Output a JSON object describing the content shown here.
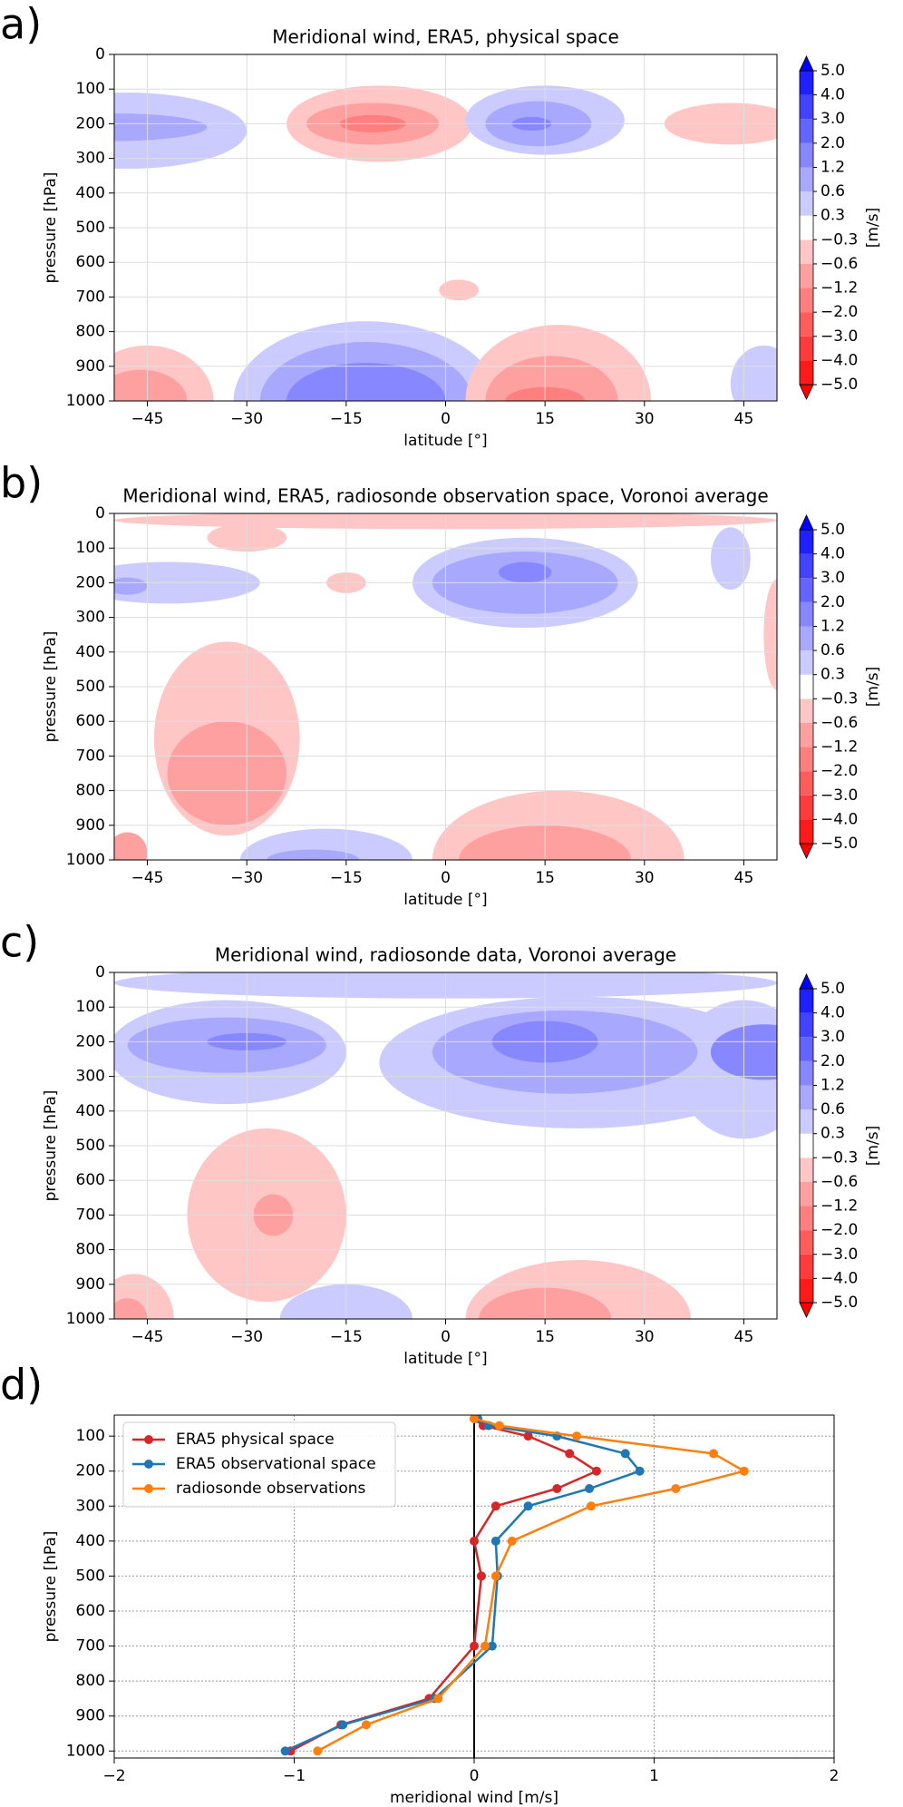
{
  "chart_data": [
    {
      "type": "contour",
      "panel_label": "a)",
      "title": "Meridional wind, ERA5, physical space",
      "xlabel": "latitude [°]",
      "ylabel": "pressure [hPa]",
      "xlim": [
        -50,
        50
      ],
      "xticks": [
        {
          "value": -45,
          "label": "−45"
        },
        {
          "value": -30,
          "label": "−30"
        },
        {
          "value": -15,
          "label": "−15"
        },
        0,
        15,
        30,
        45
      ],
      "ylim": [
        1000,
        0
      ],
      "yticks": [
        0,
        100,
        200,
        300,
        400,
        500,
        600,
        700,
        800,
        900,
        1000
      ],
      "grid": true,
      "colorbar_label": "[m/s]",
      "levels": [
        {
          "value": -5,
          "label": "−5.0"
        },
        {
          "value": -4,
          "label": "−4.0"
        },
        {
          "value": -3,
          "label": "−3.0"
        },
        {
          "value": -2,
          "label": "−2.0"
        },
        {
          "value": -1.2,
          "label": "−1.2"
        },
        {
          "value": -0.6,
          "label": "−0.6"
        },
        {
          "value": -0.3,
          "label": "−0.3"
        },
        0.3,
        0.6,
        1.2,
        {
          "value": 2,
          "label": "2.0"
        },
        {
          "value": 3,
          "label": "3.0"
        },
        {
          "value": 4,
          "label": "4.0"
        },
        {
          "value": 5,
          "label": "5.0"
        }
      ],
      "colors": [
        "#ff1a1a",
        "#ff3b3b",
        "#ff5c5c",
        "#ff7f7f",
        "#ffa0a0",
        "#ffc6c6",
        "#ffffff",
        "#cbcbff",
        "#a8a8ff",
        "#8787ff",
        "#6464ff",
        "#4242ff",
        "#2020ff"
      ],
      "under_color": "#ff0000",
      "over_color": "#0000ff"
    },
    {
      "type": "contour",
      "panel_label": "b)",
      "title": "Meridional wind, ERA5, radiosonde observation space, Voronoi average",
      "xlabel": "latitude [°]",
      "ylabel": "pressure [hPa]",
      "xlim": [
        -50,
        50
      ],
      "xticks": [
        {
          "value": -45,
          "label": "−45"
        },
        {
          "value": -30,
          "label": "−30"
        },
        {
          "value": -15,
          "label": "−15"
        },
        0,
        15,
        30,
        45
      ],
      "ylim": [
        1000,
        0
      ],
      "yticks": [
        0,
        100,
        200,
        300,
        400,
        500,
        600,
        700,
        800,
        900,
        1000
      ],
      "grid": true,
      "colorbar_label": "[m/s]",
      "levels": [
        {
          "value": -5,
          "label": "−5.0"
        },
        {
          "value": -4,
          "label": "−4.0"
        },
        {
          "value": -3,
          "label": "−3.0"
        },
        {
          "value": -2,
          "label": "−2.0"
        },
        {
          "value": -1.2,
          "label": "−1.2"
        },
        {
          "value": -0.6,
          "label": "−0.6"
        },
        {
          "value": -0.3,
          "label": "−0.3"
        },
        0.3,
        0.6,
        1.2,
        {
          "value": 2,
          "label": "2.0"
        },
        {
          "value": 3,
          "label": "3.0"
        },
        {
          "value": 4,
          "label": "4.0"
        },
        {
          "value": 5,
          "label": "5.0"
        }
      ],
      "colors": [
        "#ff1a1a",
        "#ff3b3b",
        "#ff5c5c",
        "#ff7f7f",
        "#ffa0a0",
        "#ffc6c6",
        "#ffffff",
        "#cbcbff",
        "#a8a8ff",
        "#8787ff",
        "#6464ff",
        "#4242ff",
        "#2020ff"
      ],
      "under_color": "#ff0000",
      "over_color": "#0000ff"
    },
    {
      "type": "contour",
      "panel_label": "c)",
      "title": "Meridional wind, radiosonde data, Voronoi average",
      "xlabel": "latitude [°]",
      "ylabel": "pressure [hPa]",
      "xlim": [
        -50,
        50
      ],
      "xticks": [
        {
          "value": -45,
          "label": "−45"
        },
        {
          "value": -30,
          "label": "−30"
        },
        {
          "value": -15,
          "label": "−15"
        },
        0,
        15,
        30,
        45
      ],
      "ylim": [
        1000,
        0
      ],
      "yticks": [
        0,
        100,
        200,
        300,
        400,
        500,
        600,
        700,
        800,
        900,
        1000
      ],
      "grid": true,
      "colorbar_label": "[m/s]",
      "levels": [
        {
          "value": -5,
          "label": "−5.0"
        },
        {
          "value": -4,
          "label": "−4.0"
        },
        {
          "value": -3,
          "label": "−3.0"
        },
        {
          "value": -2,
          "label": "−2.0"
        },
        {
          "value": -1.2,
          "label": "−1.2"
        },
        {
          "value": -0.6,
          "label": "−0.6"
        },
        {
          "value": -0.3,
          "label": "−0.3"
        },
        0.3,
        0.6,
        1.2,
        {
          "value": 2,
          "label": "2.0"
        },
        {
          "value": 3,
          "label": "3.0"
        },
        {
          "value": 4,
          "label": "4.0"
        },
        {
          "value": 5,
          "label": "5.0"
        }
      ],
      "colors": [
        "#ff1a1a",
        "#ff3b3b",
        "#ff5c5c",
        "#ff7f7f",
        "#ffa0a0",
        "#ffc6c6",
        "#ffffff",
        "#cbcbff",
        "#a8a8ff",
        "#8787ff",
        "#6464ff",
        "#4242ff",
        "#2020ff"
      ],
      "under_color": "#ff0000",
      "over_color": "#0000ff"
    },
    {
      "type": "line",
      "panel_label": "d)",
      "xlabel": "meridional wind [m/s]",
      "ylabel": "pressure [hPa]",
      "xlim": [
        -2,
        2
      ],
      "xticks": [
        {
          "value": -2,
          "label": "−2"
        },
        {
          "value": -1,
          "label": "−1"
        },
        0,
        1,
        2
      ],
      "ylim": [
        1020,
        40
      ],
      "yticks": [
        100,
        200,
        300,
        400,
        500,
        600,
        700,
        800,
        900,
        1000
      ],
      "grid": true,
      "legend": "upper left",
      "y": [
        50,
        70,
        100,
        150,
        200,
        250,
        300,
        400,
        500,
        700,
        850,
        925,
        1000
      ],
      "series": [
        {
          "name": "ERA5 physical space",
          "color": "#d62728",
          "values": [
            0.0,
            0.05,
            0.3,
            0.53,
            0.68,
            0.46,
            0.12,
            0.0,
            0.04,
            0.0,
            -0.25,
            -0.74,
            -1.02
          ]
        },
        {
          "name": "ERA5 observational space",
          "color": "#1f77b4",
          "values": [
            0.02,
            0.08,
            0.46,
            0.84,
            0.92,
            0.64,
            0.3,
            0.12,
            0.13,
            0.1,
            -0.22,
            -0.73,
            -1.05
          ]
        },
        {
          "name": "radiosonde observations",
          "color": "#ff7f0e",
          "values": [
            0.0,
            0.14,
            0.57,
            1.33,
            1.5,
            1.12,
            0.65,
            0.21,
            0.12,
            0.06,
            -0.2,
            -0.6,
            -0.87
          ]
        }
      ]
    }
  ]
}
